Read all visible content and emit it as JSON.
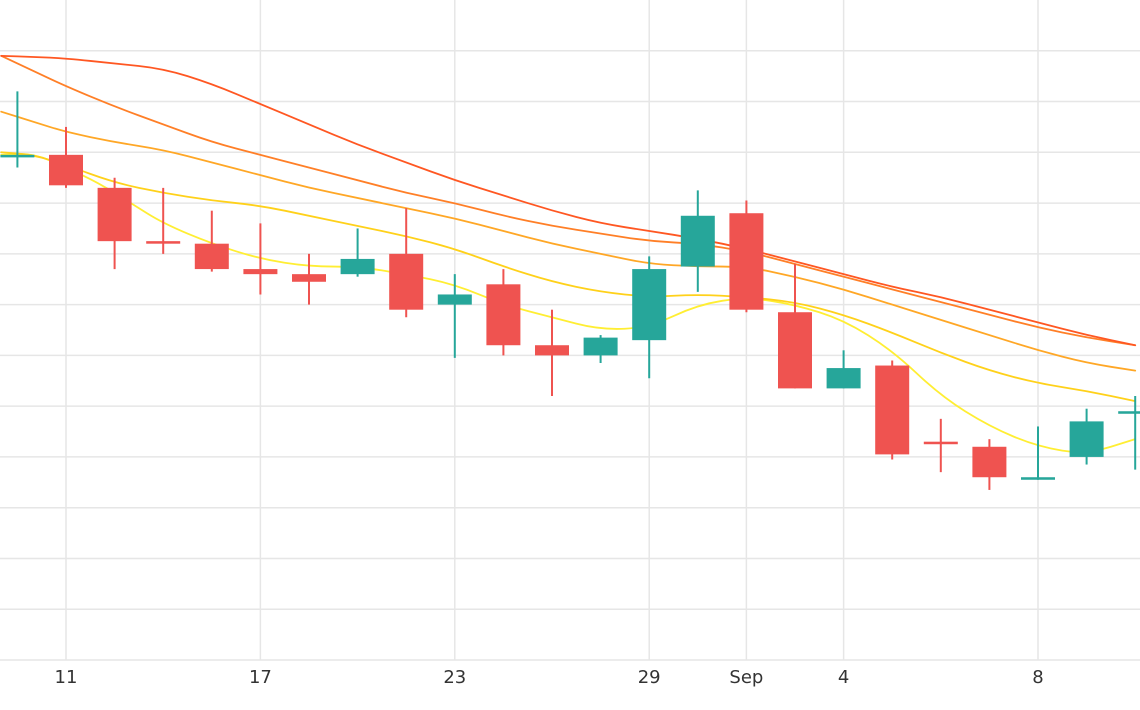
{
  "chart_data": {
    "type": "candlestick",
    "title": "",
    "xlabel": "",
    "ylabel": "",
    "x_tick_labels": [
      "11",
      "17",
      "23",
      "29",
      "Sep",
      "4",
      "8"
    ],
    "x_range_days": [
      9.0,
      44.0
    ],
    "x_ticks_day": [
      11,
      17,
      23,
      29,
      32,
      35,
      41
    ],
    "y_range": [
      0,
      13
    ],
    "y_gridlines": [
      1,
      2,
      3,
      4,
      5,
      6,
      7,
      8,
      9,
      10,
      11,
      12
    ],
    "y_tick_labels_shown": false,
    "grid": true,
    "increasing_color": "#26a69a",
    "decreasing_color": "#ef5350",
    "candles": [
      {
        "day": 9.5,
        "open": 9.9,
        "high": 11.2,
        "low": 9.7,
        "close": 9.95
      },
      {
        "day": 11,
        "open": 9.95,
        "high": 10.5,
        "low": 9.3,
        "close": 9.35
      },
      {
        "day": 12.5,
        "open": 9.3,
        "high": 9.5,
        "low": 7.7,
        "close": 8.25
      },
      {
        "day": 14,
        "open": 8.25,
        "high": 9.3,
        "low": 8.0,
        "close": 8.2
      },
      {
        "day": 15.5,
        "open": 8.2,
        "high": 8.85,
        "low": 7.65,
        "close": 7.7
      },
      {
        "day": 17,
        "open": 7.7,
        "high": 8.6,
        "low": 7.2,
        "close": 7.6
      },
      {
        "day": 18.5,
        "open": 7.6,
        "high": 8.0,
        "low": 7.0,
        "close": 7.45
      },
      {
        "day": 20,
        "open": 7.6,
        "high": 8.5,
        "low": 7.55,
        "close": 7.9
      },
      {
        "day": 21.5,
        "open": 8.0,
        "high": 8.9,
        "low": 6.75,
        "close": 6.9
      },
      {
        "day": 23,
        "open": 7.0,
        "high": 7.6,
        "low": 5.95,
        "close": 7.2
      },
      {
        "day": 24.5,
        "open": 7.4,
        "high": 7.7,
        "low": 6.0,
        "close": 6.2
      },
      {
        "day": 26,
        "open": 6.2,
        "high": 6.9,
        "low": 5.2,
        "close": 6.0
      },
      {
        "day": 27.5,
        "open": 6.0,
        "high": 6.4,
        "low": 5.85,
        "close": 6.35
      },
      {
        "day": 29,
        "open": 6.3,
        "high": 7.95,
        "low": 5.55,
        "close": 7.7
      },
      {
        "day": 30.5,
        "open": 7.75,
        "high": 9.25,
        "low": 7.25,
        "close": 8.75
      },
      {
        "day": 32,
        "open": 8.8,
        "high": 9.05,
        "low": 6.85,
        "close": 6.9
      },
      {
        "day": 33.5,
        "open": 6.85,
        "high": 7.8,
        "low": 5.35,
        "close": 5.35
      },
      {
        "day": 35,
        "open": 5.35,
        "high": 6.1,
        "low": 5.35,
        "close": 5.75
      },
      {
        "day": 36.5,
        "open": 5.8,
        "high": 5.9,
        "low": 3.95,
        "close": 4.05
      },
      {
        "day": 38,
        "open": 4.3,
        "high": 4.75,
        "low": 3.7,
        "close": 4.25
      },
      {
        "day": 39.5,
        "open": 4.2,
        "high": 4.35,
        "low": 3.35,
        "close": 3.6
      },
      {
        "day": 41,
        "open": 3.55,
        "high": 4.6,
        "low": 3.55,
        "close": 3.6
      },
      {
        "day": 42.5,
        "open": 4.0,
        "high": 4.95,
        "low": 3.85,
        "close": 4.7
      },
      {
        "day": 44,
        "open": 4.85,
        "high": 5.2,
        "low": 3.75,
        "close": 4.9
      }
    ],
    "moving_averages": [
      {
        "color": "#ffee33",
        "stroke_width": 1.8,
        "points": [
          [
            9,
            9.95
          ],
          [
            10,
            9.98
          ],
          [
            11,
            9.7
          ],
          [
            12,
            9.4
          ],
          [
            13,
            9.0
          ],
          [
            14,
            8.6
          ],
          [
            15.5,
            8.2
          ],
          [
            17,
            7.9
          ],
          [
            18.5,
            7.75
          ],
          [
            20,
            7.75
          ],
          [
            21.5,
            7.6
          ],
          [
            23,
            7.4
          ],
          [
            24.5,
            7.0
          ],
          [
            26,
            6.75
          ],
          [
            27.5,
            6.5
          ],
          [
            29,
            6.55
          ],
          [
            30.5,
            7.0
          ],
          [
            32,
            7.15
          ],
          [
            33.5,
            7.0
          ],
          [
            35,
            6.7
          ],
          [
            36.5,
            6.1
          ],
          [
            38,
            5.2
          ],
          [
            39.5,
            4.6
          ],
          [
            41,
            4.2
          ],
          [
            42.5,
            4.05
          ],
          [
            44,
            4.35
          ]
        ]
      },
      {
        "color": "#ffd11a",
        "stroke_width": 1.8,
        "points": [
          [
            9,
            10.0
          ],
          [
            10,
            9.95
          ],
          [
            11,
            9.75
          ],
          [
            12.5,
            9.4
          ],
          [
            14,
            9.2
          ],
          [
            15.5,
            9.05
          ],
          [
            17,
            8.95
          ],
          [
            18.5,
            8.75
          ],
          [
            20,
            8.55
          ],
          [
            21.5,
            8.35
          ],
          [
            23,
            8.1
          ],
          [
            24.5,
            7.75
          ],
          [
            26,
            7.45
          ],
          [
            27.5,
            7.25
          ],
          [
            29,
            7.15
          ],
          [
            30.5,
            7.2
          ],
          [
            32,
            7.15
          ],
          [
            33.5,
            7.05
          ],
          [
            35,
            6.8
          ],
          [
            36.5,
            6.45
          ],
          [
            38,
            6.05
          ],
          [
            39.5,
            5.7
          ],
          [
            41,
            5.45
          ],
          [
            42.5,
            5.3
          ],
          [
            44,
            5.1
          ]
        ]
      },
      {
        "color": "#ffa726",
        "stroke_width": 1.8,
        "points": [
          [
            9,
            10.8
          ],
          [
            10,
            10.6
          ],
          [
            11,
            10.4
          ],
          [
            12.5,
            10.2
          ],
          [
            14,
            10.05
          ],
          [
            15.5,
            9.8
          ],
          [
            17,
            9.55
          ],
          [
            18.5,
            9.3
          ],
          [
            20,
            9.1
          ],
          [
            21.5,
            8.9
          ],
          [
            23,
            8.7
          ],
          [
            24.5,
            8.45
          ],
          [
            26,
            8.2
          ],
          [
            27.5,
            8.0
          ],
          [
            29,
            7.8
          ],
          [
            30.5,
            7.75
          ],
          [
            32,
            7.75
          ],
          [
            33.5,
            7.55
          ],
          [
            35,
            7.3
          ],
          [
            36.5,
            7.0
          ],
          [
            38,
            6.7
          ],
          [
            39.5,
            6.4
          ],
          [
            41,
            6.1
          ],
          [
            42.5,
            5.85
          ],
          [
            44,
            5.7
          ]
        ]
      },
      {
        "color": "#ff7f27",
        "stroke_width": 1.8,
        "points": [
          [
            9,
            11.9
          ],
          [
            10,
            11.6
          ],
          [
            11,
            11.3
          ],
          [
            12.5,
            10.9
          ],
          [
            14,
            10.55
          ],
          [
            15.5,
            10.2
          ],
          [
            17,
            9.95
          ],
          [
            18.5,
            9.7
          ],
          [
            20,
            9.45
          ],
          [
            21.5,
            9.2
          ],
          [
            23,
            9.0
          ],
          [
            24.5,
            8.75
          ],
          [
            26,
            8.55
          ],
          [
            27.5,
            8.4
          ],
          [
            29,
            8.25
          ],
          [
            30.5,
            8.2
          ],
          [
            32,
            8.05
          ],
          [
            33.5,
            7.8
          ],
          [
            35,
            7.55
          ],
          [
            36.5,
            7.3
          ],
          [
            38,
            7.05
          ],
          [
            39.5,
            6.8
          ],
          [
            41,
            6.55
          ],
          [
            42.5,
            6.35
          ],
          [
            44,
            6.2
          ]
        ]
      },
      {
        "color": "#ff5722",
        "stroke_width": 1.8,
        "points": [
          [
            9,
            11.9
          ],
          [
            10,
            11.88
          ],
          [
            11,
            11.85
          ],
          [
            12.5,
            11.75
          ],
          [
            14,
            11.65
          ],
          [
            15.5,
            11.35
          ],
          [
            17,
            10.95
          ],
          [
            18.5,
            10.55
          ],
          [
            20,
            10.15
          ],
          [
            21.5,
            9.8
          ],
          [
            23,
            9.45
          ],
          [
            24.5,
            9.15
          ],
          [
            26,
            8.85
          ],
          [
            27.5,
            8.6
          ],
          [
            29,
            8.45
          ],
          [
            30.5,
            8.3
          ],
          [
            32,
            8.1
          ],
          [
            33.5,
            7.85
          ],
          [
            35,
            7.6
          ],
          [
            36.5,
            7.35
          ],
          [
            38,
            7.15
          ],
          [
            39.5,
            6.9
          ],
          [
            41,
            6.65
          ],
          [
            42.5,
            6.4
          ],
          [
            44,
            6.2
          ]
        ]
      }
    ]
  }
}
